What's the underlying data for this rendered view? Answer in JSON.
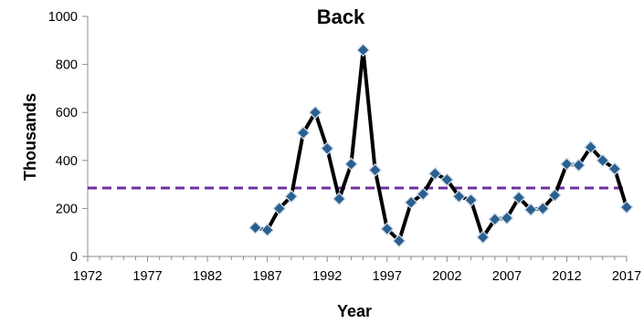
{
  "chart_data": {
    "type": "line",
    "title": "Back",
    "xlabel": "Year",
    "ylabel": "Thousands",
    "xlim": [
      1972,
      2017
    ],
    "ylim": [
      0,
      1000
    ],
    "x_ticks": [
      "1972",
      "1977",
      "1982",
      "1987",
      "1992",
      "1997",
      "2002",
      "2007",
      "2012",
      "2017"
    ],
    "y_ticks": [
      "0",
      "200",
      "400",
      "600",
      "800",
      "1000"
    ],
    "grid": false,
    "legend": "none",
    "colors": {
      "line": "#000000",
      "marker": "#2B5F8E",
      "marker_edge": "#C9DAEA",
      "reference": "#7030A0"
    },
    "reference_line": {
      "value": 285
    },
    "series": [
      {
        "x": [
          1986,
          1987,
          1988,
          1989,
          1990,
          1991,
          1992,
          1993,
          1994,
          1995,
          1996,
          1997,
          1998,
          1999,
          2000,
          2001,
          2002,
          2003,
          2004,
          2005,
          2006,
          2007,
          2008,
          2009,
          2010,
          2011,
          2012,
          2013,
          2014,
          2015,
          2016,
          2017
        ],
        "y": [
          120,
          110,
          200,
          250,
          515,
          600,
          450,
          240,
          385,
          860,
          360,
          115,
          65,
          225,
          260,
          345,
          320,
          250,
          235,
          80,
          155,
          160,
          245,
          195,
          200,
          255,
          385,
          380,
          455,
          400,
          365,
          205
        ]
      }
    ]
  }
}
